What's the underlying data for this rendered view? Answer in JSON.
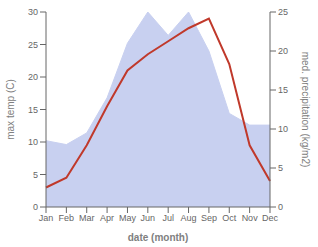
{
  "chart_data": {
    "type": "line",
    "xlabel": "date (month)",
    "ylabel": "max temp (C)",
    "y2label": "med. precipitation (kg/m2)",
    "categories": [
      "Jan",
      "Feb",
      "Mar",
      "Apr",
      "May",
      "Jun",
      "Jul",
      "Aug",
      "Sep",
      "Oct",
      "Nov",
      "Dec"
    ],
    "series": [
      {
        "type": "area",
        "axis": "y2",
        "color": "#c8d0f0",
        "values": [
          8.5,
          8.0,
          9.5,
          14.0,
          21.0,
          25.0,
          22.0,
          25.0,
          20.0,
          12.0,
          10.5,
          10.5
        ]
      },
      {
        "type": "line",
        "color": "#c0392b",
        "values": [
          3.0,
          4.5,
          9.5,
          15.5,
          21.0,
          23.5,
          25.5,
          27.5,
          29.0,
          22.0,
          9.5,
          4.0
        ]
      }
    ],
    "ylim": [
      0,
      30
    ],
    "yticks": [
      0,
      5,
      10,
      15,
      20,
      25,
      30
    ],
    "y2lim": [
      0,
      25
    ],
    "y2ticks": [
      0,
      5,
      10,
      15,
      20,
      25
    ],
    "grid": false
  }
}
